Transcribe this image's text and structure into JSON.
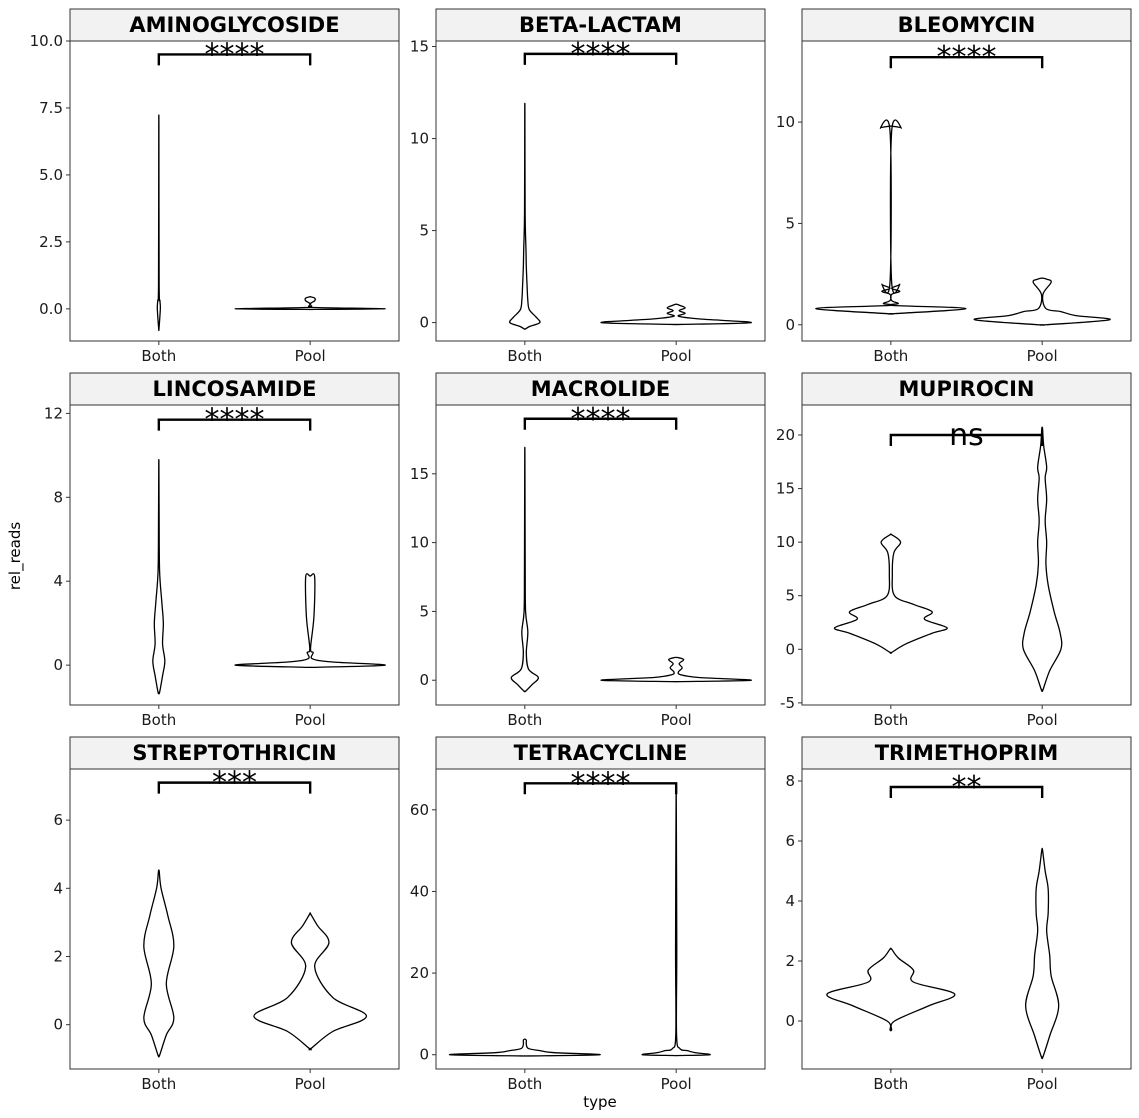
{
  "chart_data": {
    "type": "violin",
    "xlabel": "type",
    "ylabel": "rel_reads",
    "categories": [
      "Both",
      "Pool"
    ],
    "panels": [
      {
        "title": "AMINOGLYCOSIDE",
        "ylim": [
          -1.2,
          10.0
        ],
        "yticks": [
          0.0,
          2.5,
          5.0,
          7.5,
          10.0
        ],
        "ytick_labels": [
          "0.0",
          "2.5",
          "5.0",
          "7.5",
          "10.0"
        ],
        "significance": "****",
        "bracket_y": 9.5,
        "violins": [
          {
            "group": "Both",
            "shape": [
              [
                -0.75,
                0.002
              ],
              [
                0.0,
                0.02
              ],
              [
                0.3,
                0.015
              ],
              [
                1.0,
                0.004
              ],
              [
                6.8,
                0.001
              ]
            ]
          },
          {
            "group": "Pool",
            "shape": [
              [
                -0.02,
                0.05
              ],
              [
                0.0,
                1.0
              ],
              [
                0.05,
                0.06
              ],
              [
                0.1,
                0.02
              ],
              [
                0.2,
                0.005
              ],
              [
                0.3,
                0.06
              ],
              [
                0.4,
                0.06
              ],
              [
                0.45,
                0.005
              ]
            ]
          }
        ]
      },
      {
        "title": "BETA-LACTAM",
        "ylim": [
          -1.0,
          15.3
        ],
        "yticks": [
          0,
          5,
          10,
          15
        ],
        "ytick_labels": [
          "0",
          "5",
          "10",
          "15"
        ],
        "significance": "****",
        "bracket_y": 14.6,
        "violins": [
          {
            "group": "Both",
            "shape": [
              [
                -0.35,
                0.005
              ],
              [
                -0.2,
                0.07
              ],
              [
                0.0,
                0.2
              ],
              [
                0.3,
                0.15
              ],
              [
                0.7,
                0.06
              ],
              [
                1.2,
                0.04
              ],
              [
                2.0,
                0.03
              ],
              [
                3.0,
                0.02
              ],
              [
                4.0,
                0.015
              ],
              [
                6.0,
                0.004
              ],
              [
                11.5,
                0.001
              ]
            ]
          },
          {
            "group": "Pool",
            "shape": [
              [
                -0.1,
                0.05
              ],
              [
                0.0,
                1.0
              ],
              [
                0.2,
                0.3
              ],
              [
                0.35,
                0.03
              ],
              [
                0.5,
                0.12
              ],
              [
                0.65,
                0.04
              ],
              [
                0.8,
                0.12
              ],
              [
                0.95,
                0.04
              ],
              [
                1.0,
                0.005
              ]
            ]
          }
        ]
      },
      {
        "title": "BLEOMYCIN",
        "ylim": [
          -0.8,
          14.0
        ],
        "yticks": [
          0,
          5,
          10
        ],
        "ytick_labels": [
          "0",
          "5",
          "10"
        ],
        "significance": "****",
        "bracket_y": 13.2,
        "violins": [
          {
            "group": "Both",
            "shape": [
              [
                0.55,
                0.05
              ],
              [
                0.8,
                1.0
              ],
              [
                0.95,
                0.03
              ],
              [
                1.05,
                0.1
              ],
              [
                1.2,
                0.01
              ],
              [
                1.5,
                0.01
              ],
              [
                1.65,
                0.12
              ],
              [
                1.8,
                0.01
              ],
              [
                2.0,
                0.12
              ],
              [
                2.15,
                0.01
              ],
              [
                9.5,
                0.01
              ],
              [
                9.7,
                0.14
              ],
              [
                9.8,
                0.01
              ]
            ]
          },
          {
            "group": "Pool",
            "shape": [
              [
                0.0,
                0.05
              ],
              [
                0.25,
                0.9
              ],
              [
                0.45,
                0.45
              ],
              [
                0.65,
                0.25
              ],
              [
                0.8,
                0.05
              ],
              [
                1.5,
                0.01
              ],
              [
                2.1,
                0.12
              ],
              [
                2.25,
                0.06
              ],
              [
                2.3,
                0.005
              ]
            ]
          }
        ]
      },
      {
        "title": "LINCOSAMIDE",
        "ylim": [
          -1.9,
          12.4
        ],
        "yticks": [
          0,
          4,
          8,
          12
        ],
        "ytick_labels": [
          "0",
          "4",
          "8",
          "12"
        ],
        "significance": "****",
        "bracket_y": 11.7,
        "violins": [
          {
            "group": "Both",
            "shape": [
              [
                -1.3,
                0.01
              ],
              [
                -0.5,
                0.05
              ],
              [
                0.2,
                0.08
              ],
              [
                1.0,
                0.05
              ],
              [
                2.0,
                0.06
              ],
              [
                3.0,
                0.04
              ],
              [
                4.5,
                0.01
              ],
              [
                7.0,
                0.004
              ],
              [
                9.6,
                0.001
              ]
            ]
          },
          {
            "group": "Pool",
            "shape": [
              [
                -0.1,
                0.1
              ],
              [
                0.0,
                1.0
              ],
              [
                0.15,
                0.3
              ],
              [
                0.3,
                0.03
              ],
              [
                0.6,
                0.04
              ],
              [
                0.8,
                0.005
              ],
              [
                2.3,
                0.05
              ],
              [
                4.2,
                0.06
              ],
              [
                4.25,
                0.005
              ]
            ]
          }
        ]
      },
      {
        "title": "MACROLIDE",
        "ylim": [
          -1.8,
          20.0
        ],
        "yticks": [
          0,
          5,
          10,
          15
        ],
        "ytick_labels": [
          "0",
          "5",
          "10",
          "15"
        ],
        "significance": "****",
        "bracket_y": 19.0,
        "violins": [
          {
            "group": "Both",
            "shape": [
              [
                -0.8,
                0.01
              ],
              [
                -0.3,
                0.1
              ],
              [
                0.2,
                0.18
              ],
              [
                0.8,
                0.05
              ],
              [
                2.0,
                0.02
              ],
              [
                3.5,
                0.04
              ],
              [
                5.0,
                0.01
              ],
              [
                8.0,
                0.005
              ],
              [
                16.3,
                0.001
              ]
            ]
          },
          {
            "group": "Pool",
            "shape": [
              [
                -0.1,
                0.05
              ],
              [
                0.0,
                1.0
              ],
              [
                0.2,
                0.3
              ],
              [
                0.4,
                0.06
              ],
              [
                0.6,
                0.03
              ],
              [
                0.9,
                0.08
              ],
              [
                1.2,
                0.04
              ],
              [
                1.5,
                0.1
              ],
              [
                1.65,
                0.02
              ]
            ]
          }
        ]
      },
      {
        "title": "MUPIROCIN",
        "ylim": [
          -5.2,
          22.8
        ],
        "yticks": [
          -5,
          0,
          5,
          10,
          15,
          20
        ],
        "ytick_labels": [
          "-5",
          "0",
          "5",
          "10",
          "15",
          "20"
        ],
        "significance": "ns",
        "bracket_y": 20.0,
        "violins": [
          {
            "group": "Both",
            "shape": [
              [
                -0.3,
                0.01
              ],
              [
                0.5,
                0.2
              ],
              [
                1.5,
                0.55
              ],
              [
                2.0,
                0.75
              ],
              [
                2.8,
                0.45
              ],
              [
                3.5,
                0.55
              ],
              [
                4.2,
                0.3
              ],
              [
                5.0,
                0.05
              ],
              [
                7.0,
                0.02
              ],
              [
                9.0,
                0.04
              ],
              [
                10.0,
                0.13
              ],
              [
                10.7,
                0.01
              ]
            ]
          },
          {
            "group": "Pool",
            "shape": [
              [
                -3.8,
                0.01
              ],
              [
                -2.0,
                0.1
              ],
              [
                0.0,
                0.25
              ],
              [
                1.5,
                0.24
              ],
              [
                3.5,
                0.16
              ],
              [
                6.0,
                0.08
              ],
              [
                8.0,
                0.05
              ],
              [
                10.0,
                0.06
              ],
              [
                12.0,
                0.04
              ],
              [
                14.0,
                0.06
              ],
              [
                16.0,
                0.04
              ],
              [
                17.0,
                0.06
              ],
              [
                19.0,
                0.02
              ],
              [
                20.6,
                0.005
              ]
            ]
          }
        ]
      },
      {
        "title": "STREPTOTHRICIN",
        "ylim": [
          -1.3,
          7.5
        ],
        "yticks": [
          0,
          2,
          4,
          6
        ],
        "ytick_labels": [
          "0",
          "2",
          "4",
          "6"
        ],
        "significance": "***",
        "bracket_y": 7.1,
        "violins": [
          {
            "group": "Both",
            "shape": [
              [
                -0.9,
                0.01
              ],
              [
                -0.3,
                0.1
              ],
              [
                0.2,
                0.2
              ],
              [
                1.2,
                0.1
              ],
              [
                2.3,
                0.2
              ],
              [
                3.2,
                0.12
              ],
              [
                4.0,
                0.03
              ],
              [
                4.5,
                0.005
              ]
            ]
          },
          {
            "group": "Pool",
            "shape": [
              [
                -0.7,
                0.01
              ],
              [
                -0.2,
                0.3
              ],
              [
                0.25,
                0.75
              ],
              [
                0.8,
                0.3
              ],
              [
                1.7,
                0.06
              ],
              [
                2.4,
                0.25
              ],
              [
                2.9,
                0.1
              ],
              [
                3.25,
                0.005
              ]
            ]
          }
        ]
      },
      {
        "title": "TETRACYCLINE",
        "ylim": [
          -3.5,
          70.0
        ],
        "yticks": [
          0,
          20,
          40,
          60
        ],
        "ytick_labels": [
          "0",
          "20",
          "40",
          "60"
        ],
        "significance": "****",
        "bracket_y": 66.5,
        "violins": [
          {
            "group": "Both",
            "shape": [
              [
                -0.3,
                0.05
              ],
              [
                0.0,
                1.0
              ],
              [
                0.5,
                0.4
              ],
              [
                1.0,
                0.2
              ],
              [
                1.5,
                0.05
              ],
              [
                2.5,
                0.02
              ],
              [
                3.5,
                0.02
              ],
              [
                3.8,
                0.005
              ]
            ]
          },
          {
            "group": "Pool",
            "shape": [
              [
                -0.2,
                0.05
              ],
              [
                0.0,
                0.45
              ],
              [
                0.5,
                0.25
              ],
              [
                1.0,
                0.15
              ],
              [
                1.5,
                0.05
              ],
              [
                5.0,
                0.005
              ],
              [
                26.5,
                0.008
              ],
              [
                63.5,
                0.001
              ]
            ]
          }
        ]
      },
      {
        "title": "TRIMETHOPRIM",
        "ylim": [
          -1.6,
          8.4
        ],
        "yticks": [
          0,
          2,
          4,
          6,
          8
        ],
        "ytick_labels": [
          "0",
          "2",
          "4",
          "6",
          "8"
        ],
        "significance": "**",
        "bracket_y": 7.8,
        "violins": [
          {
            "group": "Both",
            "shape": [
              [
                -0.3,
                0.01
              ],
              [
                0.0,
                0.05
              ],
              [
                0.5,
                0.5
              ],
              [
                0.9,
                0.85
              ],
              [
                1.3,
                0.3
              ],
              [
                1.7,
                0.3
              ],
              [
                2.1,
                0.1
              ],
              [
                2.4,
                0.01
              ]
            ]
          },
          {
            "group": "Pool",
            "shape": [
              [
                -1.2,
                0.01
              ],
              [
                -0.5,
                0.1
              ],
              [
                0.5,
                0.22
              ],
              [
                1.5,
                0.12
              ],
              [
                2.2,
                0.1
              ],
              [
                3.0,
                0.06
              ],
              [
                3.6,
                0.08
              ],
              [
                4.4,
                0.08
              ],
              [
                5.0,
                0.04
              ],
              [
                5.7,
                0.005
              ]
            ]
          }
        ]
      }
    ]
  }
}
